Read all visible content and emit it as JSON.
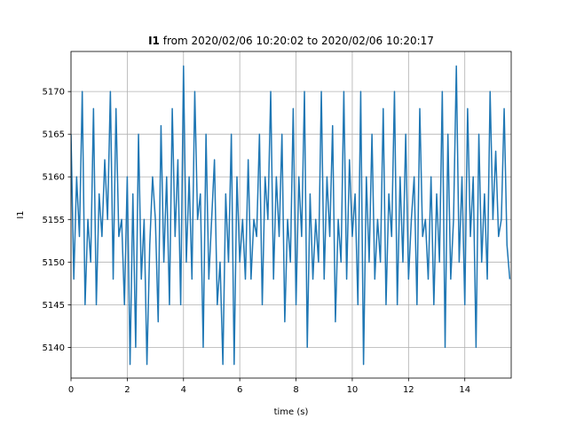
{
  "chart_data": {
    "type": "line",
    "title": [
      "I1",
      "from 2020/02/06 10:20:02 to 2020/02/06 10:20:17"
    ],
    "xlabel": "time (s)",
    "ylabel": "I1",
    "grid": true,
    "xlim": [
      0,
      15.65
    ],
    "ylim": [
      5136.4,
      5174.7
    ],
    "xticks": [
      0,
      2,
      4,
      6,
      8,
      10,
      12,
      14
    ],
    "yticks": [
      5140,
      5145,
      5150,
      5155,
      5160,
      5165,
      5170
    ],
    "x": [
      0,
      0.1,
      0.2,
      0.3,
      0.4,
      0.5,
      0.6,
      0.7,
      0.8,
      0.9,
      1,
      1.1,
      1.2,
      1.3,
      1.4,
      1.5,
      1.6,
      1.7,
      1.8,
      1.9,
      2,
      2.1,
      2.2,
      2.3,
      2.4,
      2.5,
      2.6,
      2.7,
      2.8,
      2.9,
      3,
      3.1,
      3.2,
      3.3,
      3.4,
      3.5,
      3.6,
      3.7,
      3.8,
      3.9,
      4,
      4.1,
      4.2,
      4.3,
      4.4,
      4.5,
      4.6,
      4.7,
      4.8,
      4.9,
      5,
      5.1,
      5.2,
      5.3,
      5.4,
      5.5,
      5.6,
      5.7,
      5.8,
      5.9,
      6,
      6.1,
      6.2,
      6.3,
      6.4,
      6.5,
      6.6,
      6.7,
      6.8,
      6.9,
      7,
      7.1,
      7.2,
      7.3,
      7.4,
      7.5,
      7.6,
      7.7,
      7.8,
      7.9,
      8,
      8.1,
      8.2,
      8.3,
      8.4,
      8.5,
      8.6,
      8.7,
      8.8,
      8.9,
      9,
      9.1,
      9.2,
      9.3,
      9.4,
      9.5,
      9.6,
      9.7,
      9.8,
      9.9,
      10,
      10.1,
      10.2,
      10.3,
      10.4,
      10.5,
      10.6,
      10.7,
      10.8,
      10.9,
      11,
      11.1,
      11.2,
      11.3,
      11.4,
      11.5,
      11.6,
      11.7,
      11.8,
      11.9,
      12,
      12.1,
      12.2,
      12.3,
      12.4,
      12.5,
      12.6,
      12.7,
      12.8,
      12.9,
      13,
      13.1,
      13.2,
      13.3,
      13.4,
      13.5,
      13.6,
      13.7,
      13.8,
      13.9,
      14,
      14.1,
      14.2,
      14.3,
      14.4,
      14.5,
      14.6,
      14.7,
      14.8,
      14.9,
      15,
      15.1,
      15.2,
      15.3,
      15.4,
      15.5,
      15.6
    ],
    "series": [
      {
        "name": "I1",
        "color": "#1f77b4",
        "values": [
          5165,
          5148,
          5160,
          5153,
          5170,
          5145,
          5155,
          5150,
          5168,
          5145,
          5158,
          5153,
          5162,
          5155,
          5170,
          5148,
          5168,
          5153,
          5155,
          5145,
          5160,
          5138,
          5158,
          5140,
          5165,
          5148,
          5155,
          5138,
          5152,
          5160,
          5155,
          5143,
          5166,
          5150,
          5160,
          5145,
          5168,
          5153,
          5162,
          5145,
          5173,
          5150,
          5160,
          5148,
          5170,
          5155,
          5158,
          5140,
          5165,
          5148,
          5155,
          5162,
          5145,
          5150,
          5138,
          5158,
          5150,
          5165,
          5138,
          5160,
          5150,
          5155,
          5148,
          5162,
          5148,
          5155,
          5153,
          5165,
          5145,
          5160,
          5155,
          5170,
          5148,
          5160,
          5153,
          5165,
          5143,
          5155,
          5150,
          5168,
          5145,
          5160,
          5153,
          5170,
          5140,
          5158,
          5148,
          5155,
          5150,
          5170,
          5148,
          5160,
          5153,
          5166,
          5143,
          5155,
          5150,
          5170,
          5148,
          5162,
          5153,
          5158,
          5145,
          5170,
          5138,
          5160,
          5150,
          5165,
          5148,
          5155,
          5150,
          5168,
          5145,
          5158,
          5153,
          5170,
          5145,
          5160,
          5150,
          5165,
          5148,
          5155,
          5160,
          5145,
          5168,
          5153,
          5155,
          5148,
          5160,
          5145,
          5158,
          5150,
          5170,
          5140,
          5165,
          5148,
          5155,
          5173,
          5150,
          5160,
          5145,
          5168,
          5153,
          5160,
          5140,
          5165,
          5150,
          5158,
          5148,
          5170,
          5155,
          5163,
          5153,
          5155,
          5168,
          5152,
          5148
        ]
      }
    ]
  }
}
